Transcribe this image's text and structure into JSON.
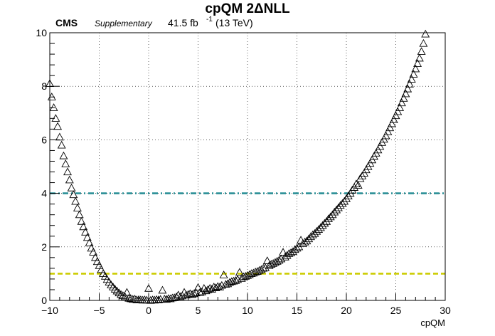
{
  "header": {
    "title": "cpQM 2ΔNLL",
    "experiment": "CMS",
    "status": "Supplementary",
    "lumi": "41.5 fb",
    "lumi_sup": "-1",
    "energy": "(13 TeV)"
  },
  "chart_data": {
    "type": "scatter",
    "title": "cpQM 2ΔNLL",
    "xlabel": "cpQM",
    "ylabel": "",
    "xlim": [
      -10,
      30
    ],
    "ylim": [
      0,
      10
    ],
    "xticks": [
      -10,
      -5,
      0,
      5,
      10,
      15,
      20,
      25,
      30
    ],
    "yticks": [
      0,
      2,
      4,
      6,
      8,
      10
    ],
    "xtick_labels": [
      "−10",
      "−5",
      "0",
      "5",
      "10",
      "15",
      "20",
      "25",
      "30"
    ],
    "ytick_labels": [
      "0",
      "2",
      "4",
      "6",
      "8",
      "10"
    ],
    "grid": true,
    "marker": "open-triangle",
    "reference_lines": [
      {
        "y": 4,
        "color": "#2a8f96",
        "style": "dash-dot"
      },
      {
        "y": 1,
        "color": "#cccc00",
        "style": "dashed"
      }
    ],
    "series": [
      {
        "marker_color": "#000000",
        "points": [
          [
            -10.0,
            8.1
          ],
          [
            -9.8,
            7.6
          ],
          [
            -9.6,
            7.2
          ],
          [
            -9.4,
            6.8
          ],
          [
            -9.2,
            6.5
          ],
          [
            -9.0,
            6.1
          ],
          [
            -8.8,
            5.8
          ],
          [
            -8.6,
            5.4
          ],
          [
            -8.4,
            5.1
          ],
          [
            -8.2,
            4.8
          ],
          [
            -8.0,
            4.5
          ],
          [
            -7.8,
            4.2
          ],
          [
            -7.6,
            3.95
          ],
          [
            -7.4,
            3.7
          ],
          [
            -7.2,
            3.45
          ],
          [
            -7.0,
            3.2
          ],
          [
            -6.8,
            2.95
          ],
          [
            -6.6,
            2.75
          ],
          [
            -6.4,
            2.55
          ],
          [
            -6.2,
            2.35
          ],
          [
            -6.0,
            2.15
          ],
          [
            -5.8,
            1.95
          ],
          [
            -5.6,
            1.8
          ],
          [
            -5.4,
            1.6
          ],
          [
            -5.2,
            1.45
          ],
          [
            -5.0,
            1.3
          ],
          [
            -4.8,
            1.15
          ],
          [
            -4.6,
            1.0
          ],
          [
            -4.4,
            0.9
          ],
          [
            -4.2,
            0.78
          ],
          [
            -4.0,
            0.68
          ],
          [
            -3.8,
            0.58
          ],
          [
            -3.6,
            0.5
          ],
          [
            -3.4,
            0.42
          ],
          [
            -3.2,
            0.35
          ],
          [
            -3.0,
            0.28
          ],
          [
            -2.8,
            0.22
          ],
          [
            -2.6,
            0.18
          ],
          [
            -2.4,
            0.14
          ],
          [
            -2.2,
            0.3
          ],
          [
            -2.0,
            0.08
          ],
          [
            -1.8,
            0.06
          ],
          [
            -1.6,
            0.04
          ],
          [
            -1.4,
            0.05
          ],
          [
            -1.2,
            0.02
          ],
          [
            -1.0,
            0.03
          ],
          [
            -0.8,
            0.02
          ],
          [
            -0.6,
            0.01
          ],
          [
            -0.4,
            0.02
          ],
          [
            -0.2,
            0.01
          ],
          [
            0.0,
            0.45
          ],
          [
            0.2,
            0.0
          ],
          [
            0.4,
            0.02
          ],
          [
            0.6,
            0.01
          ],
          [
            0.8,
            0.03
          ],
          [
            1.0,
            0.02
          ],
          [
            1.2,
            0.04
          ],
          [
            1.4,
            0.38
          ],
          [
            1.6,
            0.05
          ],
          [
            1.8,
            0.04
          ],
          [
            2.0,
            0.07
          ],
          [
            2.2,
            0.06
          ],
          [
            2.4,
            0.09
          ],
          [
            2.6,
            0.1
          ],
          [
            2.8,
            0.13
          ],
          [
            3.0,
            0.2
          ],
          [
            3.2,
            0.14
          ],
          [
            3.4,
            0.17
          ],
          [
            3.6,
            0.3
          ],
          [
            3.8,
            0.2
          ],
          [
            4.0,
            0.22
          ],
          [
            4.2,
            0.25
          ],
          [
            4.4,
            0.22
          ],
          [
            4.6,
            0.25
          ],
          [
            4.8,
            0.28
          ],
          [
            5.0,
            0.48
          ],
          [
            5.2,
            0.3
          ],
          [
            5.4,
            0.32
          ],
          [
            5.6,
            0.45
          ],
          [
            5.8,
            0.36
          ],
          [
            6.0,
            0.4
          ],
          [
            6.2,
            0.45
          ],
          [
            6.4,
            0.42
          ],
          [
            6.6,
            0.5
          ],
          [
            6.8,
            0.47
          ],
          [
            7.0,
            0.52
          ],
          [
            7.2,
            0.5
          ],
          [
            7.4,
            0.56
          ],
          [
            7.6,
            0.95
          ],
          [
            7.8,
            0.6
          ],
          [
            8.0,
            0.62
          ],
          [
            8.2,
            0.67
          ],
          [
            8.4,
            0.7
          ],
          [
            8.6,
            0.72
          ],
          [
            8.8,
            0.74
          ],
          [
            9.0,
            0.78
          ],
          [
            9.2,
            1.05
          ],
          [
            9.4,
            0.82
          ],
          [
            9.6,
            0.88
          ],
          [
            9.8,
            0.9
          ],
          [
            10.0,
            0.93
          ],
          [
            10.2,
            0.96
          ],
          [
            10.4,
            1.0
          ],
          [
            10.6,
            1.02
          ],
          [
            10.8,
            1.06
          ],
          [
            11.0,
            1.08
          ],
          [
            11.2,
            1.12
          ],
          [
            11.4,
            1.15
          ],
          [
            11.6,
            1.2
          ],
          [
            11.8,
            1.22
          ],
          [
            12.0,
            1.48
          ],
          [
            12.2,
            1.3
          ],
          [
            12.4,
            1.35
          ],
          [
            12.6,
            1.38
          ],
          [
            12.8,
            1.42
          ],
          [
            13.0,
            1.46
          ],
          [
            13.2,
            1.5
          ],
          [
            13.4,
            1.55
          ],
          [
            13.6,
            1.8
          ],
          [
            13.8,
            1.62
          ],
          [
            14.0,
            1.68
          ],
          [
            14.2,
            1.75
          ],
          [
            14.4,
            1.78
          ],
          [
            14.6,
            1.82
          ],
          [
            14.8,
            1.9
          ],
          [
            15.0,
            1.95
          ],
          [
            15.2,
            2.0
          ],
          [
            15.4,
            2.25
          ],
          [
            15.6,
            2.12
          ],
          [
            15.8,
            2.18
          ],
          [
            16.0,
            2.22
          ],
          [
            16.2,
            2.3
          ],
          [
            16.4,
            2.38
          ],
          [
            16.6,
            2.45
          ],
          [
            16.8,
            2.5
          ],
          [
            17.0,
            2.58
          ],
          [
            17.2,
            2.65
          ],
          [
            17.4,
            2.72
          ],
          [
            17.6,
            2.8
          ],
          [
            17.8,
            2.88
          ],
          [
            18.0,
            2.95
          ],
          [
            18.2,
            3.05
          ],
          [
            18.4,
            3.12
          ],
          [
            18.6,
            3.2
          ],
          [
            18.8,
            3.3
          ],
          [
            19.0,
            3.38
          ],
          [
            19.2,
            3.46
          ],
          [
            19.4,
            3.55
          ],
          [
            19.6,
            3.62
          ],
          [
            19.8,
            3.7
          ],
          [
            20.0,
            3.8
          ],
          [
            20.2,
            3.9
          ],
          [
            20.4,
            4.0
          ],
          [
            20.6,
            4.12
          ],
          [
            20.8,
            4.22
          ],
          [
            21.0,
            4.35
          ],
          [
            21.2,
            4.3
          ],
          [
            21.4,
            4.55
          ],
          [
            21.6,
            4.65
          ],
          [
            21.8,
            4.75
          ],
          [
            22.0,
            4.88
          ],
          [
            22.2,
            5.0
          ],
          [
            22.4,
            5.12
          ],
          [
            22.6,
            5.25
          ],
          [
            22.8,
            5.38
          ],
          [
            23.0,
            5.5
          ],
          [
            23.2,
            5.62
          ],
          [
            23.4,
            5.75
          ],
          [
            23.6,
            5.9
          ],
          [
            23.8,
            6.02
          ],
          [
            24.0,
            6.15
          ],
          [
            24.2,
            6.3
          ],
          [
            24.4,
            6.45
          ],
          [
            24.6,
            6.6
          ],
          [
            24.8,
            6.75
          ],
          [
            25.0,
            6.9
          ],
          [
            25.2,
            7.05
          ],
          [
            25.4,
            7.2
          ],
          [
            25.6,
            7.38
          ],
          [
            25.8,
            7.55
          ],
          [
            26.0,
            7.72
          ],
          [
            26.2,
            7.9
          ],
          [
            26.4,
            8.08
          ],
          [
            26.6,
            8.26
          ],
          [
            26.8,
            8.45
          ],
          [
            27.0,
            8.65
          ],
          [
            27.2,
            8.85
          ],
          [
            27.4,
            9.05
          ],
          [
            27.6,
            9.3
          ],
          [
            27.8,
            9.6
          ],
          [
            28.0,
            9.95
          ]
        ]
      }
    ]
  }
}
